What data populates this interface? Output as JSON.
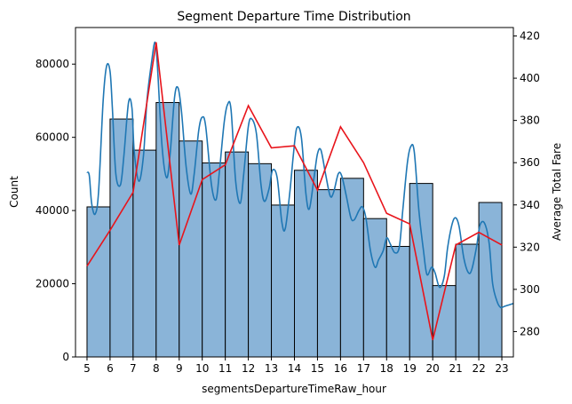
{
  "chart_data": {
    "type": "bar",
    "title": "Segment Departure Time Distribution",
    "xlabel": "segmentsDepartureTimeRaw_hour",
    "ylabel": "Count",
    "y2label": "Average Total Fare",
    "grid": false,
    "legend": "none",
    "xlim": [
      4.5,
      23.5
    ],
    "ylim": [
      0,
      90000
    ],
    "y2lim": [
      268,
      424
    ],
    "x_ticks": [
      5,
      6,
      7,
      8,
      9,
      10,
      11,
      12,
      13,
      14,
      15,
      16,
      17,
      18,
      19,
      20,
      21,
      22,
      23
    ],
    "y_ticks": [
      0,
      20000,
      40000,
      60000,
      80000
    ],
    "y2_ticks": [
      280,
      300,
      320,
      340,
      360,
      380,
      400,
      420
    ],
    "colors": {
      "bar_fill": "#8ab4d8",
      "bar_edge": "#000000",
      "kde": "#1f77b4",
      "fare_line": "#e8141b"
    },
    "histogram": {
      "bin_edges": [
        5,
        6,
        7,
        8,
        9,
        10,
        11,
        12,
        13,
        14,
        15,
        16,
        17,
        18,
        19,
        20,
        21,
        22,
        23
      ],
      "counts": [
        41000,
        65000,
        56500,
        69500,
        59000,
        53000,
        56000,
        52800,
        41500,
        51000,
        45700,
        48800,
        37800,
        30200,
        47400,
        19500,
        30800,
        42200
      ]
    },
    "kde": {
      "x": [
        5.0,
        5.1,
        5.2,
        5.35,
        5.5,
        5.7,
        5.85,
        6.0,
        6.1,
        6.25,
        6.45,
        6.6,
        6.8,
        6.95,
        7.05,
        7.25,
        7.45,
        7.6,
        7.8,
        7.95,
        8.05,
        8.25,
        8.45,
        8.6,
        8.8,
        8.95,
        9.1,
        9.3,
        9.5,
        9.65,
        9.85,
        10.0,
        10.15,
        10.4,
        10.6,
        10.75,
        10.95,
        11.1,
        11.25,
        11.45,
        11.65,
        11.8,
        12.0,
        12.15,
        12.35,
        12.55,
        12.7,
        12.9,
        13.05,
        13.25,
        13.45,
        13.6,
        13.8,
        13.95,
        14.1,
        14.3,
        14.5,
        14.65,
        14.85,
        15.0,
        15.15,
        15.35,
        15.55,
        15.7,
        15.9,
        16.05,
        16.25,
        16.45,
        16.6,
        16.8,
        16.95,
        17.1,
        17.3,
        17.5,
        17.65,
        17.85,
        18.0,
        18.15,
        18.35,
        18.55,
        18.7,
        18.9,
        19.05,
        19.2,
        19.4,
        19.6,
        19.75,
        19.95,
        20.1,
        20.3,
        20.5,
        20.65,
        20.85,
        21.0,
        21.15,
        21.35,
        21.55,
        21.7,
        21.9,
        22.05,
        22.25,
        22.45,
        22.6,
        22.8,
        22.95,
        23.1,
        23.3,
        23.5
      ],
      "y": [
        50500,
        49500,
        42000,
        39000,
        45000,
        70000,
        79500,
        78000,
        68000,
        50000,
        47000,
        55000,
        69500,
        68000,
        56000,
        48000,
        55000,
        70000,
        80500,
        86000,
        80000,
        58000,
        49000,
        55000,
        71000,
        73500,
        67000,
        52000,
        44500,
        50000,
        62000,
        65500,
        63000,
        47000,
        43000,
        51000,
        64000,
        69000,
        67500,
        48000,
        42000,
        50000,
        63000,
        65000,
        61000,
        47000,
        42500,
        46000,
        51000,
        49000,
        37000,
        35000,
        45000,
        55000,
        62500,
        60000,
        44500,
        40500,
        49000,
        55500,
        56500,
        50000,
        44000,
        45000,
        50000,
        49500,
        44000,
        38000,
        37500,
        40000,
        41000,
        38000,
        29000,
        24500,
        26500,
        29000,
        32500,
        31000,
        28500,
        30000,
        40000,
        53000,
        57500,
        56000,
        40000,
        29000,
        22500,
        24500,
        23000,
        19000,
        22000,
        30000,
        36500,
        38000,
        35500,
        27000,
        23000,
        24000,
        30000,
        36000,
        36500,
        31000,
        20000,
        15000,
        13500,
        13800,
        14200,
        14600
      ]
    },
    "fare_line": {
      "x": [
        5,
        6,
        7,
        8,
        9,
        10,
        11,
        12,
        13,
        14,
        15,
        16,
        17,
        18,
        19,
        20,
        21,
        22,
        23
      ],
      "y": [
        311,
        328,
        346,
        417,
        321,
        352,
        359,
        387,
        367,
        368,
        347,
        377,
        360,
        336,
        331,
        276,
        321,
        327,
        321
      ]
    }
  }
}
